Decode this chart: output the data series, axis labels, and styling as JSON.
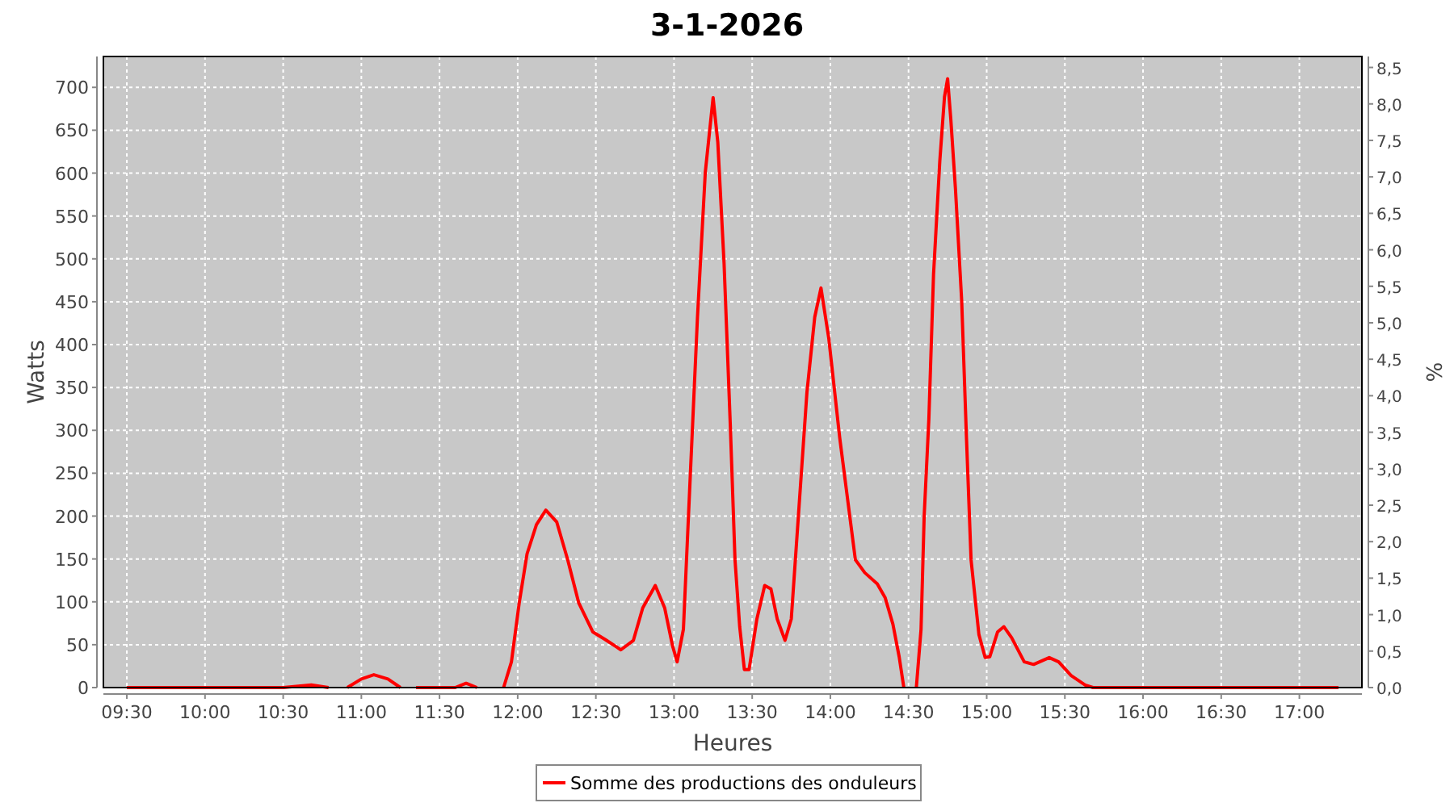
{
  "chart_data": {
    "type": "line",
    "title": "3-1-2026",
    "xlabel": "Heures",
    "ylabel": "Watts",
    "y2label": "%",
    "x": [
      9.5,
      10.0,
      10.5,
      10.68,
      10.79,
      10.85,
      10.91,
      11.0,
      11.08,
      11.17,
      11.25,
      11.3,
      11.35,
      11.6,
      11.67,
      11.74,
      11.82,
      11.91,
      11.96,
      12.01,
      12.06,
      12.12,
      12.18,
      12.25,
      12.32,
      12.39,
      12.48,
      12.56,
      12.66,
      12.74,
      12.8,
      12.88,
      12.94,
      12.99,
      13.02,
      13.06,
      13.1,
      13.15,
      13.2,
      13.25,
      13.28,
      13.32,
      13.36,
      13.39,
      13.42,
      13.45,
      13.48,
      13.53,
      13.58,
      13.62,
      13.66,
      13.71,
      13.75,
      13.8,
      13.85,
      13.9,
      13.94,
      13.99,
      14.06,
      14.16,
      14.22,
      14.3,
      14.35,
      14.4,
      14.44,
      14.47,
      14.51,
      14.55,
      14.58,
      14.6,
      14.63,
      14.66,
      14.7,
      14.73,
      14.75,
      14.77,
      14.8,
      14.84,
      14.87,
      14.9,
      14.95,
      14.99,
      15.02,
      15.07,
      15.11,
      15.16,
      15.24,
      15.3,
      15.4,
      15.46,
      15.54,
      15.63,
      15.68,
      16.0,
      16.5,
      17.0,
      17.25
    ],
    "series": [
      {
        "name": "Somme des productions des onduleurs",
        "color": "#ff0000",
        "values": [
          0,
          0,
          0,
          3,
          0,
          null,
          0,
          10,
          15,
          10,
          0,
          null,
          0,
          0,
          5,
          0,
          null,
          0,
          30,
          99,
          156,
          190,
          207,
          193,
          149,
          99,
          65,
          56,
          44,
          55,
          93,
          119,
          93,
          49,
          30,
          68,
          231,
          432,
          601,
          688,
          636,
          495,
          306,
          149,
          71,
          21,
          21,
          80,
          119,
          115,
          80,
          55,
          80,
          212,
          344,
          432,
          466,
          407,
          291,
          149,
          134,
          121,
          105,
          74,
          36,
          0,
          null,
          0,
          68,
          200,
          313,
          482,
          614,
          689,
          710,
          664,
          582,
          451,
          294,
          149,
          62,
          35,
          36,
          65,
          71,
          58,
          30,
          27,
          35,
          30,
          14,
          3,
          0,
          0,
          0,
          0,
          0
        ]
      }
    ],
    "xlim": [
      9.35,
      17.4
    ],
    "xticks": [
      {
        "value": 9.5,
        "label": "09:30"
      },
      {
        "value": 10,
        "label": "10:00"
      },
      {
        "value": 10.5,
        "label": "10:30"
      },
      {
        "value": 11,
        "label": "11:00"
      },
      {
        "value": 11.5,
        "label": "11:30"
      },
      {
        "value": 12,
        "label": "12:00"
      },
      {
        "value": 12.5,
        "label": "12:30"
      },
      {
        "value": 13,
        "label": "13:00"
      },
      {
        "value": 13.5,
        "label": "13:30"
      },
      {
        "value": 14,
        "label": "14:00"
      },
      {
        "value": 14.5,
        "label": "14:30"
      },
      {
        "value": 15,
        "label": "15:00"
      },
      {
        "value": 15.5,
        "label": "15:30"
      },
      {
        "value": 16,
        "label": "16:00"
      },
      {
        "value": 16.5,
        "label": "16:30"
      },
      {
        "value": 17,
        "label": "17:00"
      }
    ],
    "ylim": [
      0,
      736
    ],
    "yticks": [
      0,
      50,
      100,
      150,
      200,
      250,
      300,
      350,
      400,
      450,
      500,
      550,
      600,
      650,
      700
    ],
    "y2lim": [
      0,
      8.65
    ],
    "y2ticks": [
      {
        "value": 0,
        "label": "0,0"
      },
      {
        "value": 0.5,
        "label": "0,5"
      },
      {
        "value": 1,
        "label": "1,0"
      },
      {
        "value": 1.5,
        "label": "1,5"
      },
      {
        "value": 2,
        "label": "2,0"
      },
      {
        "value": 2.5,
        "label": "2,5"
      },
      {
        "value": 3,
        "label": "3,0"
      },
      {
        "value": 3.5,
        "label": "3,5"
      },
      {
        "value": 4,
        "label": "4,0"
      },
      {
        "value": 4.5,
        "label": "4,5"
      },
      {
        "value": 5,
        "label": "5,0"
      },
      {
        "value": 5.5,
        "label": "5,5"
      },
      {
        "value": 6,
        "label": "6,0"
      },
      {
        "value": 6.5,
        "label": "6,5"
      },
      {
        "value": 7,
        "label": "7,0"
      },
      {
        "value": 7.5,
        "label": "7,5"
      },
      {
        "value": 8,
        "label": "8,0"
      },
      {
        "value": 8.5,
        "label": "8,5"
      }
    ],
    "grid": true,
    "legend": "bottom",
    "marker": "none",
    "line_style": "solid"
  }
}
